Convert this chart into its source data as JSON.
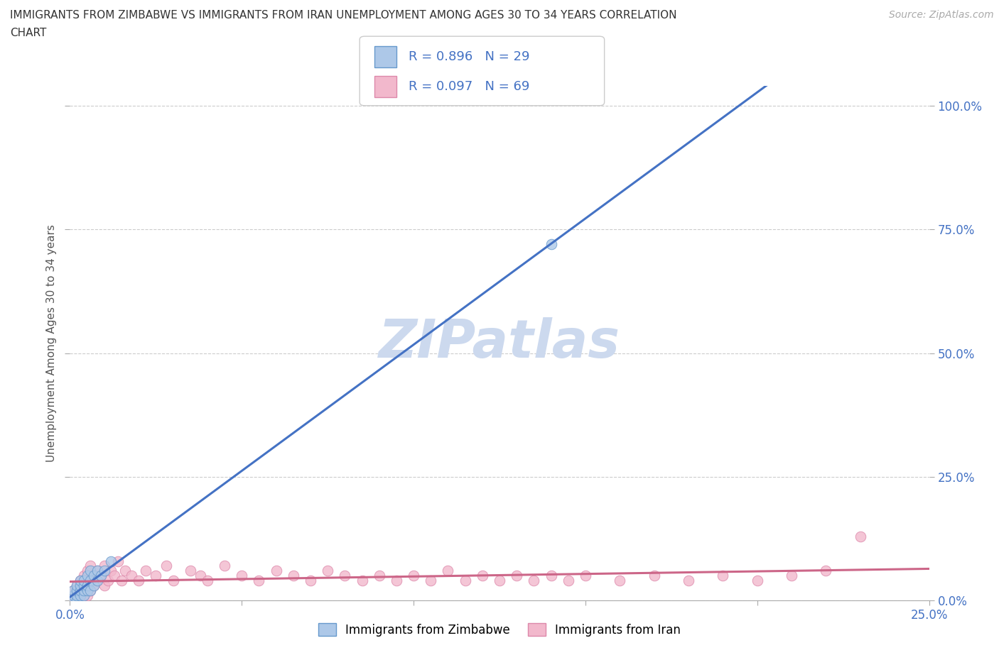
{
  "title_line1": "IMMIGRANTS FROM ZIMBABWE VS IMMIGRANTS FROM IRAN UNEMPLOYMENT AMONG AGES 30 TO 34 YEARS CORRELATION",
  "title_line2": "CHART",
  "source": "Source: ZipAtlas.com",
  "ylabel": "Unemployment Among Ages 30 to 34 years",
  "xlim": [
    0.0,
    0.25
  ],
  "ylim": [
    0.0,
    1.04
  ],
  "yticks": [
    0.0,
    0.25,
    0.5,
    0.75,
    1.0
  ],
  "xticks": [
    0.0,
    0.05,
    0.1,
    0.15,
    0.2,
    0.25
  ],
  "background_color": "#ffffff",
  "grid_color": "#cccccc",
  "watermark_text": "ZIPatlas",
  "watermark_color": "#ccd9ee",
  "legend_text_color": "#4472c4",
  "zimbabwe_fill": "#adc8e8",
  "zimbabwe_edge": "#6699cc",
  "iran_fill": "#f2b8cc",
  "iran_edge": "#dd88aa",
  "zimbabwe_line_color": "#4472c4",
  "iran_line_color": "#cc6688",
  "tick_label_color": "#4472c4",
  "ylabel_color": "#555555",
  "title_color": "#333333",
  "R_zimbabwe": 0.896,
  "N_zimbabwe": 29,
  "R_iran": 0.097,
  "N_iran": 69,
  "zimbabwe_x": [
    0.001,
    0.001,
    0.001,
    0.002,
    0.002,
    0.002,
    0.002,
    0.003,
    0.003,
    0.003,
    0.003,
    0.004,
    0.004,
    0.004,
    0.004,
    0.005,
    0.005,
    0.005,
    0.006,
    0.006,
    0.006,
    0.007,
    0.007,
    0.008,
    0.008,
    0.009,
    0.01,
    0.012,
    0.14
  ],
  "zimbabwe_y": [
    0.0,
    0.01,
    0.02,
    0.0,
    0.01,
    0.02,
    0.03,
    0.01,
    0.02,
    0.03,
    0.04,
    0.01,
    0.02,
    0.03,
    0.04,
    0.02,
    0.03,
    0.05,
    0.02,
    0.04,
    0.06,
    0.03,
    0.05,
    0.04,
    0.06,
    0.05,
    0.06,
    0.08,
    0.72
  ],
  "iran_x": [
    0.001,
    0.001,
    0.002,
    0.002,
    0.002,
    0.003,
    0.003,
    0.003,
    0.004,
    0.004,
    0.004,
    0.005,
    0.005,
    0.005,
    0.006,
    0.006,
    0.006,
    0.007,
    0.007,
    0.008,
    0.008,
    0.009,
    0.01,
    0.01,
    0.011,
    0.012,
    0.013,
    0.014,
    0.015,
    0.016,
    0.018,
    0.02,
    0.022,
    0.025,
    0.028,
    0.03,
    0.035,
    0.038,
    0.04,
    0.045,
    0.05,
    0.055,
    0.06,
    0.065,
    0.07,
    0.075,
    0.08,
    0.085,
    0.09,
    0.095,
    0.1,
    0.105,
    0.11,
    0.115,
    0.12,
    0.125,
    0.13,
    0.135,
    0.14,
    0.145,
    0.15,
    0.16,
    0.17,
    0.18,
    0.19,
    0.2,
    0.21,
    0.22,
    0.23
  ],
  "iran_y": [
    0.0,
    0.02,
    0.0,
    0.01,
    0.03,
    0.0,
    0.02,
    0.04,
    0.01,
    0.03,
    0.05,
    0.01,
    0.03,
    0.06,
    0.02,
    0.04,
    0.07,
    0.03,
    0.05,
    0.04,
    0.06,
    0.05,
    0.03,
    0.07,
    0.04,
    0.06,
    0.05,
    0.08,
    0.04,
    0.06,
    0.05,
    0.04,
    0.06,
    0.05,
    0.07,
    0.04,
    0.06,
    0.05,
    0.04,
    0.07,
    0.05,
    0.04,
    0.06,
    0.05,
    0.04,
    0.06,
    0.05,
    0.04,
    0.05,
    0.04,
    0.05,
    0.04,
    0.06,
    0.04,
    0.05,
    0.04,
    0.05,
    0.04,
    0.05,
    0.04,
    0.05,
    0.04,
    0.05,
    0.04,
    0.05,
    0.04,
    0.05,
    0.06,
    0.13
  ]
}
